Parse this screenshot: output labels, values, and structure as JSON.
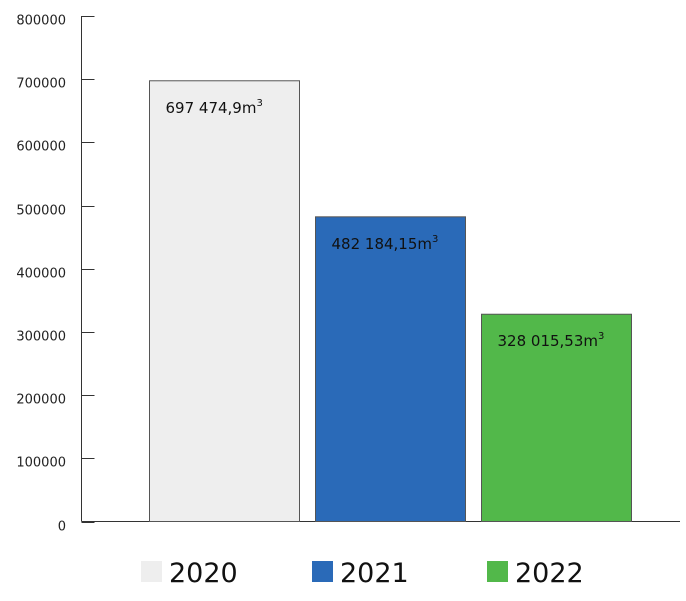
{
  "chart_data": {
    "type": "bar",
    "categories": [
      "2020",
      "2021",
      "2022"
    ],
    "values": [
      697474.9,
      482184.15,
      328015.53
    ],
    "data_labels": [
      {
        "text": "697 474,9m",
        "sup": "3"
      },
      {
        "text": "482 184,15m",
        "sup": "3"
      },
      {
        "text": "328 015,53m",
        "sup": "3"
      }
    ],
    "colors": [
      "#eeeeee",
      "#2a6ab8",
      "#52b84a"
    ],
    "ylim": [
      0,
      800000
    ],
    "yticks": [
      0,
      100000,
      200000,
      300000,
      400000,
      500000,
      600000,
      700000,
      800000
    ],
    "ytick_labels": [
      "0",
      "100000",
      "200000",
      "300000",
      "400000",
      "500000",
      "600000",
      "700000",
      "800000"
    ],
    "legend": {
      "placement": "bottom",
      "entries": [
        "2020",
        "2021",
        "2022"
      ]
    },
    "grid": false,
    "title": "",
    "xlabel": "",
    "ylabel": ""
  }
}
